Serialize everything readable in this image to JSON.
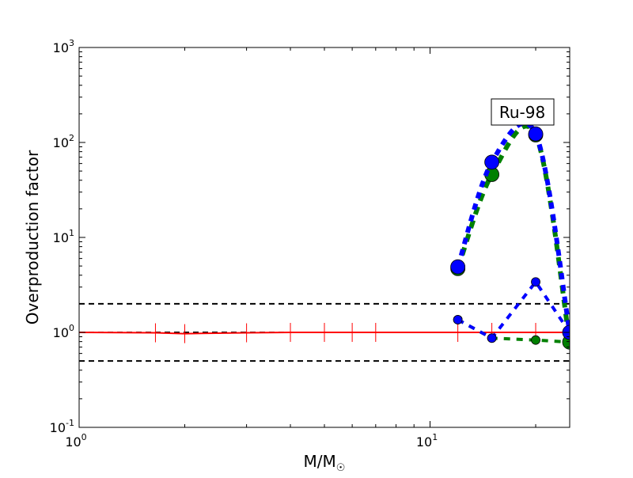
{
  "chart_data": {
    "type": "line",
    "title": "",
    "xlabel": "M/M",
    "xlabel_subscript": "☉",
    "ylabel": "Overproduction factor",
    "xscale": "log",
    "yscale": "log",
    "xlim": [
      1,
      25
    ],
    "ylim": [
      0.1,
      1000
    ],
    "x_tick_labels": [
      {
        "base": "10",
        "exp": "0",
        "value": 1
      },
      {
        "base": "10",
        "exp": "1",
        "value": 10
      }
    ],
    "y_tick_labels": [
      {
        "base": "10",
        "exp": "-1",
        "value": 0.1
      },
      {
        "base": "10",
        "exp": "0",
        "value": 1
      },
      {
        "base": "10",
        "exp": "1",
        "value": 10
      },
      {
        "base": "10",
        "exp": "2",
        "value": 100
      },
      {
        "base": "10",
        "exp": "3",
        "value": 1000
      }
    ],
    "grid": false,
    "annotation": "Ru-98",
    "reference_lines": [
      0.5,
      1,
      2
    ],
    "series": [
      {
        "style": "green-thick-dashed-large-markers",
        "color": "#008000",
        "x": [
          12,
          15,
          20,
          25
        ],
        "y": [
          4.7,
          46,
          120,
          0.79
        ]
      },
      {
        "style": "blue-thick-dotted-large-markers",
        "color": "#0000ff",
        "x": [
          12,
          15,
          20,
          25
        ],
        "y": [
          4.9,
          62,
          123,
          1.0
        ]
      },
      {
        "style": "green-dashed-small-markers",
        "color": "#008000",
        "x": [
          12,
          15,
          20,
          25
        ],
        "y": [
          1.36,
          0.87,
          0.83,
          0.79
        ]
      },
      {
        "style": "blue-dashed-small-markers",
        "color": "#0000ff",
        "x": [
          12,
          15,
          20,
          25
        ],
        "y": [
          1.36,
          0.87,
          3.4,
          1.0
        ]
      },
      {
        "style": "red-solid-errorbars",
        "color": "#ff0000",
        "x": [
          1,
          1.65,
          2,
          3,
          4,
          5,
          6,
          7,
          12,
          15,
          20,
          25
        ],
        "y": [
          1.0,
          0.99,
          0.97,
          0.99,
          1.0,
          1.0,
          1.0,
          1.0,
          1.0,
          1.0,
          1.0,
          1.0
        ]
      }
    ]
  }
}
